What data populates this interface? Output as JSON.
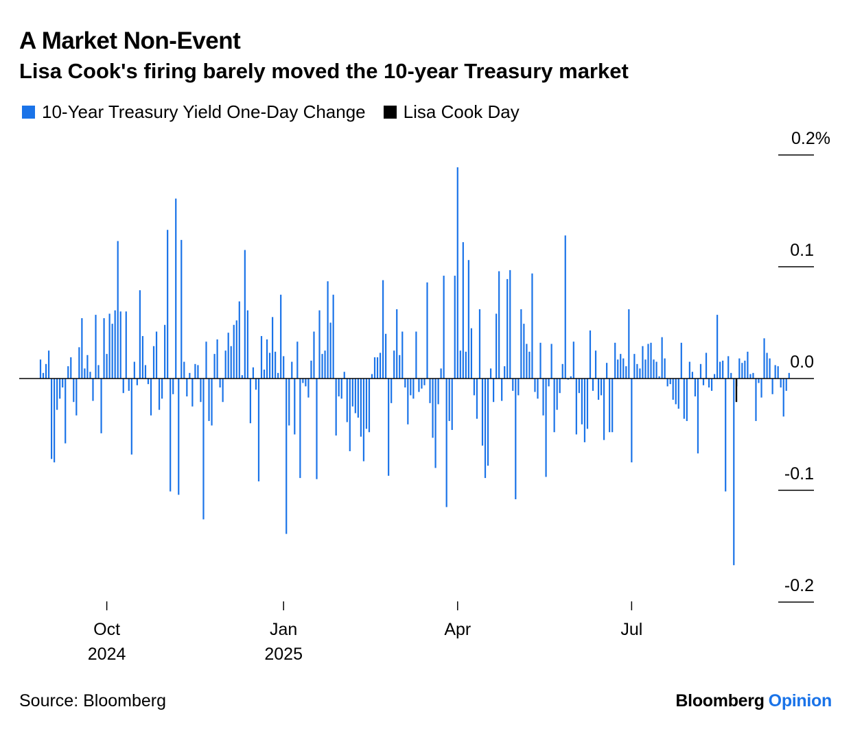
{
  "header": {
    "title": "A Market Non-Event",
    "subtitle": "Lisa Cook's firing barely moved the 10-year Treasury market"
  },
  "legend": [
    {
      "label": "10-Year Treasury Yield One-Day Change",
      "color": "#1a73e8"
    },
    {
      "label": "Lisa Cook Day",
      "color": "#000000"
    }
  ],
  "footer": {
    "source": "Source: Bloomberg",
    "brand_bloomberg": "Bloomberg",
    "brand_opinion": "Opinion",
    "brand_opinion_color": "#1a73e8"
  },
  "chart_data": {
    "type": "bar",
    "ylim": [
      -0.2,
      0.2
    ],
    "y_ticks": [
      {
        "value": 0.2,
        "label": "0.2%"
      },
      {
        "value": 0.1,
        "label": "0.1"
      },
      {
        "value": 0.0,
        "label": "0.0"
      },
      {
        "value": -0.1,
        "label": "-0.1"
      },
      {
        "value": -0.2,
        "label": "-0.2"
      }
    ],
    "x_ticks": [
      {
        "index": 24,
        "label": "Oct",
        "sublabel": "2024"
      },
      {
        "index": 88,
        "label": "Jan",
        "sublabel": "2025"
      },
      {
        "index": 151,
        "label": "Apr",
        "sublabel": ""
      },
      {
        "index": 214,
        "label": "Jul",
        "sublabel": ""
      }
    ],
    "series": [
      {
        "name": "10-Year Treasury Yield One-Day Change",
        "color": "#1a73e8",
        "values": [
          0.017,
          0.005,
          0.013,
          0.025,
          -0.072,
          -0.075,
          -0.028,
          -0.018,
          -0.008,
          -0.058,
          0.011,
          0.019,
          -0.021,
          -0.033,
          0.028,
          0.054,
          0.009,
          0.021,
          0.006,
          -0.02,
          0.057,
          0.012,
          -0.049,
          0.054,
          0.022,
          0.058,
          0.049,
          0.061,
          0.123,
          0.06,
          -0.013,
          0.06,
          -0.011,
          -0.068,
          0.015,
          -0.006,
          0.079,
          0.038,
          0.012,
          -0.005,
          -0.033,
          0.029,
          0.042,
          -0.028,
          -0.018,
          0.048,
          0.133,
          -0.101,
          -0.014,
          0.161,
          -0.104,
          0.124,
          0.015,
          -0.016,
          0.005,
          -0.025,
          0.013,
          0.012,
          -0.021,
          -0.126,
          0.033,
          -0.038,
          -0.042,
          0.022,
          0.035,
          -0.008,
          -0.021,
          0.025,
          0.041,
          0.029,
          0.048,
          0.052,
          0.069,
          0.003,
          0.115,
          0.061,
          -0.04,
          0.01,
          -0.01,
          -0.092,
          0.038,
          0.008,
          0.035,
          0.023,
          0.055,
          0.024,
          0.005,
          0.075,
          0.02,
          -0.139,
          -0.042,
          0.015,
          -0.05,
          0.033,
          -0.089,
          -0.004,
          -0.007,
          -0.017,
          0.016,
          0.042,
          -0.09,
          0.061,
          0.022,
          0.025,
          0.087,
          0.05,
          0.075,
          -0.051,
          -0.016,
          -0.018,
          0.006,
          -0.039,
          -0.065,
          -0.025,
          -0.031,
          -0.035,
          -0.052,
          -0.074,
          -0.045,
          -0.048,
          0.004,
          0.019,
          0.019,
          0.023,
          0.088,
          0.04,
          -0.087,
          -0.022,
          0.025,
          0.062,
          0.021,
          0.042,
          -0.008,
          -0.041,
          -0.015,
          -0.018,
          0.042,
          -0.012,
          -0.009,
          -0.006,
          0.086,
          -0.022,
          -0.053,
          -0.08,
          -0.023,
          0.009,
          0.092,
          -0.115,
          -0.038,
          -0.046,
          0.092,
          0.189,
          0.025,
          0.122,
          0.024,
          0.106,
          0.045,
          -0.015,
          -0.036,
          0.062,
          -0.06,
          -0.089,
          -0.078,
          0.009,
          -0.021,
          0.058,
          0.096,
          -0.02,
          0.011,
          0.089,
          0.097,
          -0.011,
          -0.108,
          -0.015,
          0.062,
          0.049,
          0.031,
          0.024,
          0.094,
          -0.012,
          -0.018,
          0.032,
          -0.033,
          -0.088,
          -0.007,
          0.031,
          -0.048,
          -0.028,
          -0.013,
          0.013,
          0.128,
          -0.001,
          0.002,
          0.033,
          -0.05,
          -0.013,
          -0.041,
          -0.057,
          -0.045,
          0.043,
          -0.011,
          0.025,
          -0.019,
          -0.015,
          -0.055,
          0.014,
          -0.048,
          -0.048,
          0.032,
          0.017,
          0.022,
          0.018,
          0.011,
          0.062,
          -0.075,
          0.022,
          0.013,
          0.009,
          0.029,
          0.017,
          0.031,
          0.032,
          0.017,
          0.015,
          0.002,
          0.037,
          0.018,
          -0.007,
          -0.005,
          -0.019,
          -0.023,
          -0.027,
          0.032,
          -0.036,
          -0.038,
          0.015,
          0.006,
          -0.016,
          -0.067,
          0.013,
          -0.006,
          0.023,
          -0.008,
          -0.011,
          0.004,
          0.057,
          0.015,
          0.016,
          -0.101,
          0.02,
          0.005,
          -0.167,
          -0.007,
          0.018,
          0.014,
          0.016,
          0.024,
          0.004,
          0.005,
          -0.038,
          -0.004,
          -0.017,
          0.036,
          0.023,
          0.018,
          -0.014,
          0.012,
          0.011,
          -0.008,
          -0.034,
          -0.011,
          0.005
        ]
      },
      {
        "name": "Lisa Cook Day",
        "color": "#000000",
        "values": [
          -0.021
        ]
      }
    ]
  }
}
